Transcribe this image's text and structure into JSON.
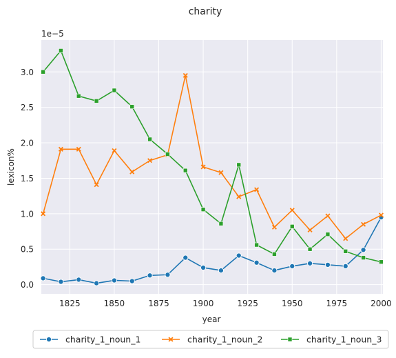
{
  "chart_data": {
    "type": "line",
    "title": "charity",
    "xlabel": "year",
    "ylabel": "lexicon%",
    "y_scale_label": "1e−5",
    "xlim": [
      1809,
      2001
    ],
    "ylim": [
      -0.13,
      3.45
    ],
    "x_ticks": [
      1825,
      1850,
      1875,
      1900,
      1925,
      1950,
      1975,
      2000
    ],
    "x_tick_labels": [
      "1825",
      "1850",
      "1875",
      "1900",
      "1925",
      "1950",
      "1975",
      "2000"
    ],
    "y_ticks": [
      0.0,
      0.5,
      1.0,
      1.5,
      2.0,
      2.5,
      3.0
    ],
    "y_tick_labels": [
      "0.0",
      "0.5",
      "1.0",
      "1.5",
      "2.0",
      "2.5",
      "3.0"
    ],
    "grid": true,
    "legend_placement": "bottom-center, below axes",
    "x": [
      1810,
      1820,
      1830,
      1840,
      1850,
      1860,
      1870,
      1880,
      1890,
      1900,
      1910,
      1920,
      1930,
      1940,
      1950,
      1960,
      1970,
      1980,
      1990,
      2000
    ],
    "series": [
      {
        "name": "charity_1_noun_1",
        "color": "#1f77b4",
        "marker": "circle",
        "values": [
          0.09,
          0.04,
          0.07,
          0.02,
          0.06,
          0.05,
          0.13,
          0.14,
          0.38,
          0.24,
          0.2,
          0.41,
          0.31,
          0.2,
          0.26,
          0.3,
          0.28,
          0.26,
          0.49,
          0.95
        ]
      },
      {
        "name": "charity_1_noun_2",
        "color": "#ff7f0e",
        "marker": "x",
        "values": [
          1.0,
          1.91,
          1.91,
          1.41,
          1.89,
          1.59,
          1.75,
          1.83,
          2.95,
          1.66,
          1.58,
          1.24,
          1.34,
          0.81,
          1.05,
          0.77,
          0.97,
          0.65,
          0.85,
          0.98
        ]
      },
      {
        "name": "charity_1_noun_3",
        "color": "#2ca02c",
        "marker": "square",
        "values": [
          3.0,
          3.3,
          2.66,
          2.59,
          2.74,
          2.51,
          2.05,
          1.84,
          1.61,
          1.06,
          0.86,
          1.69,
          0.56,
          0.43,
          0.82,
          0.5,
          0.71,
          0.47,
          0.38,
          0.32
        ]
      }
    ]
  }
}
